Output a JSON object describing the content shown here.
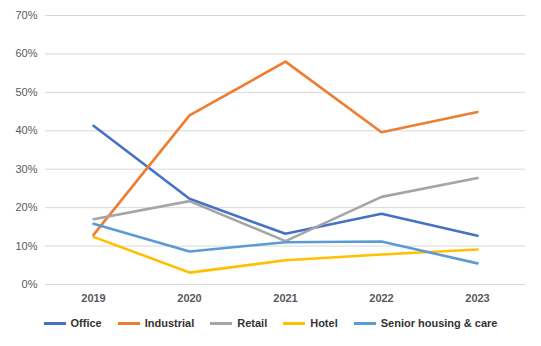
{
  "chart_data": {
    "type": "line",
    "categories": [
      "2019",
      "2020",
      "2021",
      "2022",
      "2023"
    ],
    "series": [
      {
        "name": "Office",
        "color": "#4472c4",
        "values": [
          41.3,
          22.3,
          13.2,
          18.4,
          12.7
        ]
      },
      {
        "name": "Industrial",
        "color": "#ed7d31",
        "values": [
          12.9,
          44.0,
          58.0,
          39.6,
          44.9
        ]
      },
      {
        "name": "Retail",
        "color": "#a5a5a5",
        "values": [
          17.0,
          21.7,
          11.3,
          22.8,
          27.7
        ]
      },
      {
        "name": "Hotel",
        "color": "#ffc000",
        "values": [
          12.4,
          3.1,
          6.3,
          7.8,
          9.1
        ]
      },
      {
        "name": "Senior housing & care",
        "color": "#5b9bd5",
        "values": [
          15.8,
          8.6,
          11.0,
          11.2,
          5.5
        ]
      }
    ],
    "ylim": [
      0,
      70
    ],
    "yticks": [
      {
        "value": 0,
        "label": "0%"
      },
      {
        "value": 10,
        "label": "10%"
      },
      {
        "value": 20,
        "label": "20%"
      },
      {
        "value": 30,
        "label": "30%"
      },
      {
        "value": 40,
        "label": "40%"
      },
      {
        "value": 50,
        "label": "50%"
      },
      {
        "value": 60,
        "label": "60%"
      },
      {
        "value": 70,
        "label": "70%"
      }
    ],
    "grid": true,
    "legend": "bottom"
  }
}
